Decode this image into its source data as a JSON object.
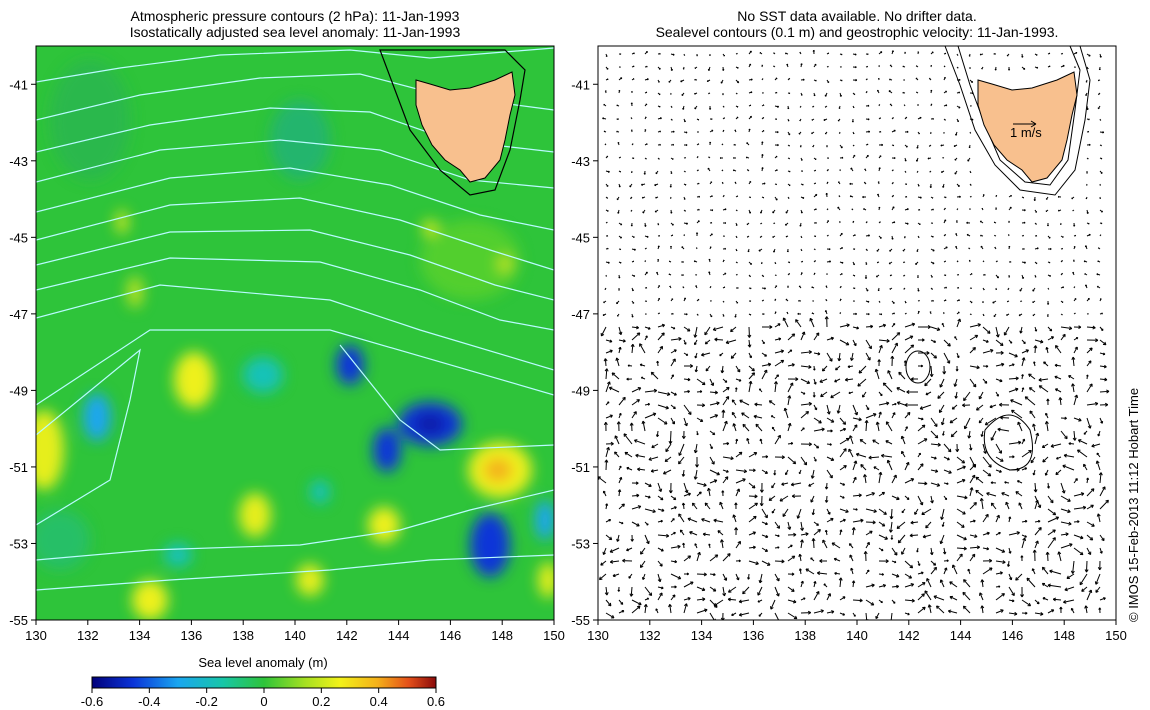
{
  "left_panel": {
    "title_line1": "Atmospheric pressure contours (2 hPa): 11-Jan-1993",
    "title_line2": "Isostatically adjusted sea level anomaly: 11-Jan-1993",
    "lon_ticks": [
      "130",
      "132",
      "134",
      "136",
      "138",
      "140",
      "142",
      "144",
      "146",
      "148",
      "150"
    ],
    "lat_ticks": [
      "-41",
      "-43",
      "-45",
      "-47",
      "-49",
      "-51",
      "-53",
      "-55"
    ]
  },
  "right_panel": {
    "title_line1": "No SST data available.  No drifter data.",
    "title_line2": "Sealevel contours (0.1 m) and geostrophic velocity: 11-Jan-1993.",
    "lon_ticks": [
      "130",
      "132",
      "134",
      "136",
      "138",
      "140",
      "142",
      "144",
      "146",
      "148",
      "150"
    ],
    "lat_ticks": [
      "-41",
      "-43",
      "-45",
      "-47",
      "-49",
      "-51",
      "-53",
      "-55"
    ],
    "scale_label": "1 m/s"
  },
  "colorbar": {
    "title": "Sea level anomaly (m)",
    "ticks": [
      "-0.6",
      "-0.4",
      "-0.2",
      "0",
      "0.2",
      "0.4",
      "0.6"
    ]
  },
  "credit": "© IMOS 15-Feb-2013 11:12 Hobart Time",
  "colors": {
    "land": "#f8c08e",
    "ocean_base": "#2ec43a",
    "pressure_contour": "#b8fbff",
    "velocity_arrow": "#000000"
  }
}
